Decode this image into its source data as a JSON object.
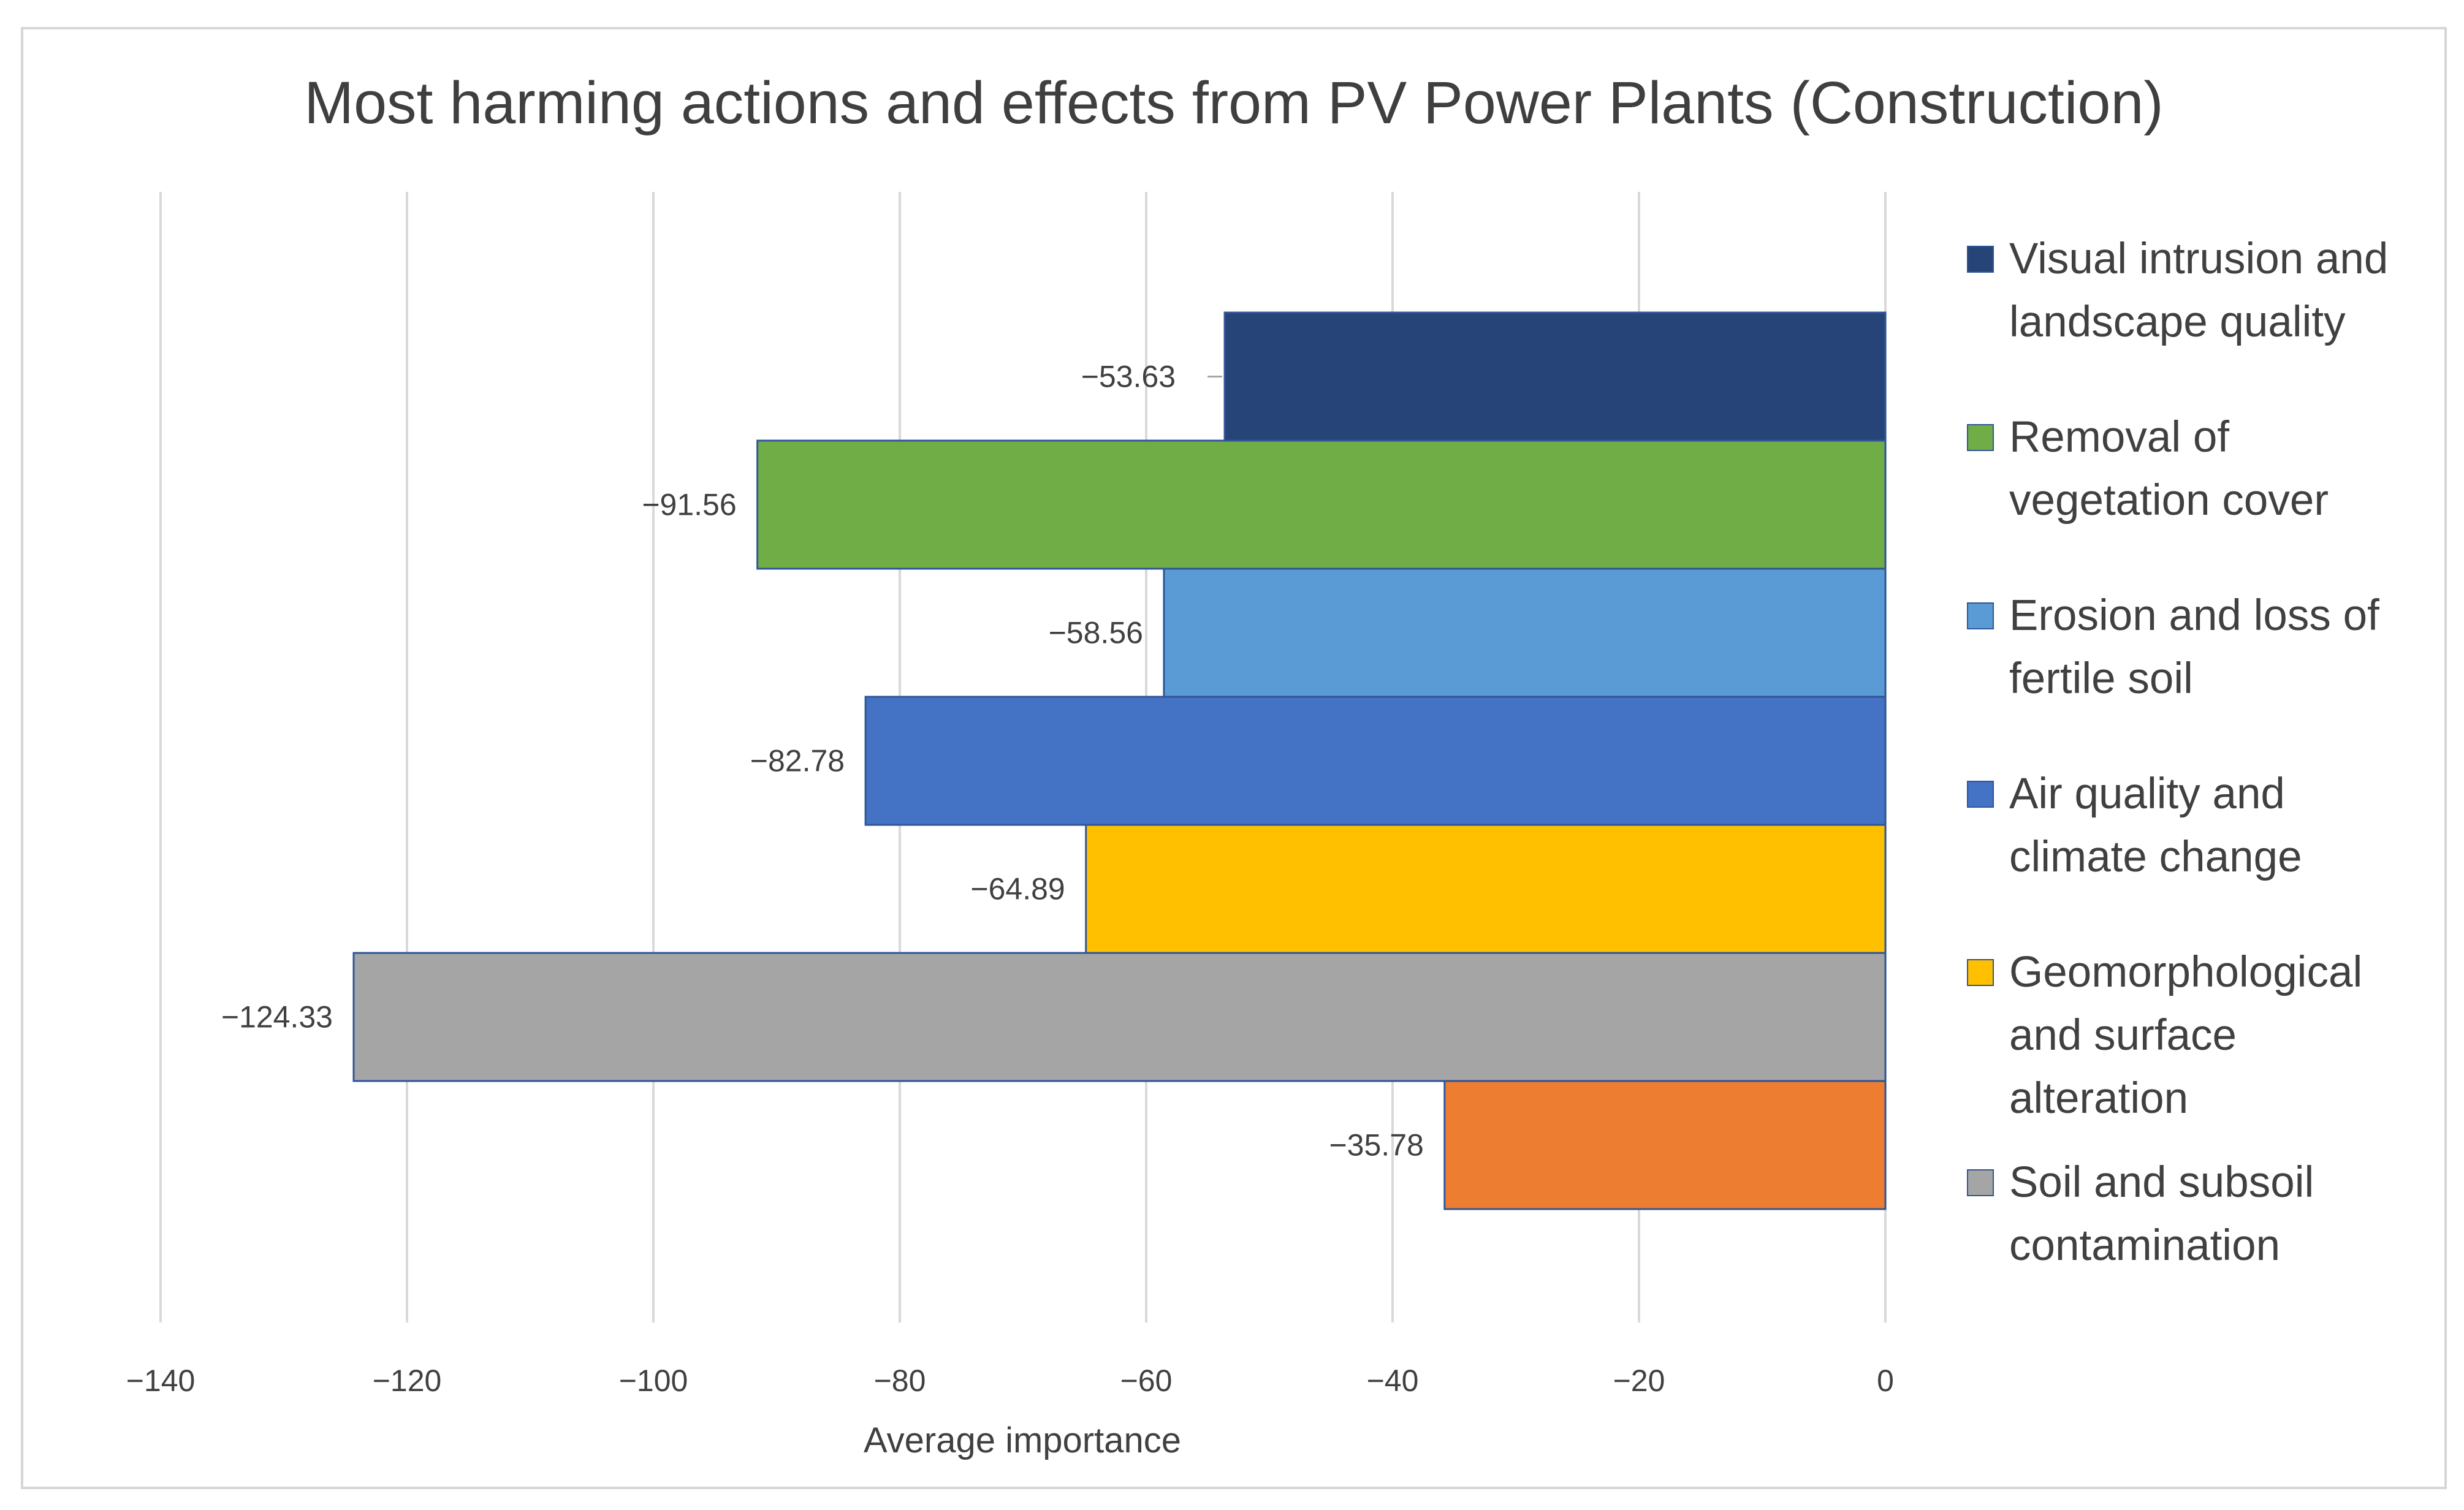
{
  "chart_data": {
    "type": "bar",
    "orientation": "horizontal",
    "title": "Most harming actions and effects from PV Power Plants (Construction)",
    "xlabel": "Average importance",
    "ylabel": "",
    "xlim": [
      -140,
      0
    ],
    "x_ticks": [
      -140,
      -120,
      -100,
      -80,
      -60,
      -40,
      -20,
      0
    ],
    "x_tick_labels": [
      "−140",
      "−120",
      "−100",
      "−80",
      "−60",
      "−40",
      "−20",
      "0"
    ],
    "grid": true,
    "legend_position": "right",
    "series": [
      {
        "name": "Visual intrusion and landscape quality",
        "value": -53.63,
        "label": "−53.63",
        "color": "#264478"
      },
      {
        "name": "Removal of vegetation cover",
        "value": -91.56,
        "label": "−91.56",
        "color": "#70AD47"
      },
      {
        "name": "Erosion and loss of fertile soil",
        "value": -58.56,
        "label": "−58.56",
        "color": "#5B9BD5"
      },
      {
        "name": "Air quality and climate change",
        "value": -82.78,
        "label": "−82.78",
        "color": "#4472C4"
      },
      {
        "name": "Geomorphological and surface alteration",
        "value": -64.89,
        "label": "−64.89",
        "color": "#FFC000"
      },
      {
        "name": "Soil and subsoil contamination",
        "value": -124.33,
        "label": "−124.33",
        "color": "#A5A5A5"
      },
      {
        "name": "",
        "value": -35.78,
        "label": "−35.78",
        "color": "#ED7D31"
      }
    ],
    "legend": [
      {
        "lines": [
          "Visual intrusion and",
          "landscape quality"
        ],
        "color": "#264478"
      },
      {
        "lines": [
          "Removal of",
          "vegetation cover"
        ],
        "color": "#70AD47"
      },
      {
        "lines": [
          "Erosion and loss of",
          "fertile soil"
        ],
        "color": "#5B9BD5"
      },
      {
        "lines": [
          "Air quality and",
          "climate change"
        ],
        "color": "#4472C4"
      },
      {
        "lines": [
          "Geomorphological",
          "and surface",
          "alteration"
        ],
        "color": "#FFC000"
      },
      {
        "lines": [
          "Soil and subsoil",
          "contamination"
        ],
        "color": "#A5A5A5"
      }
    ]
  }
}
